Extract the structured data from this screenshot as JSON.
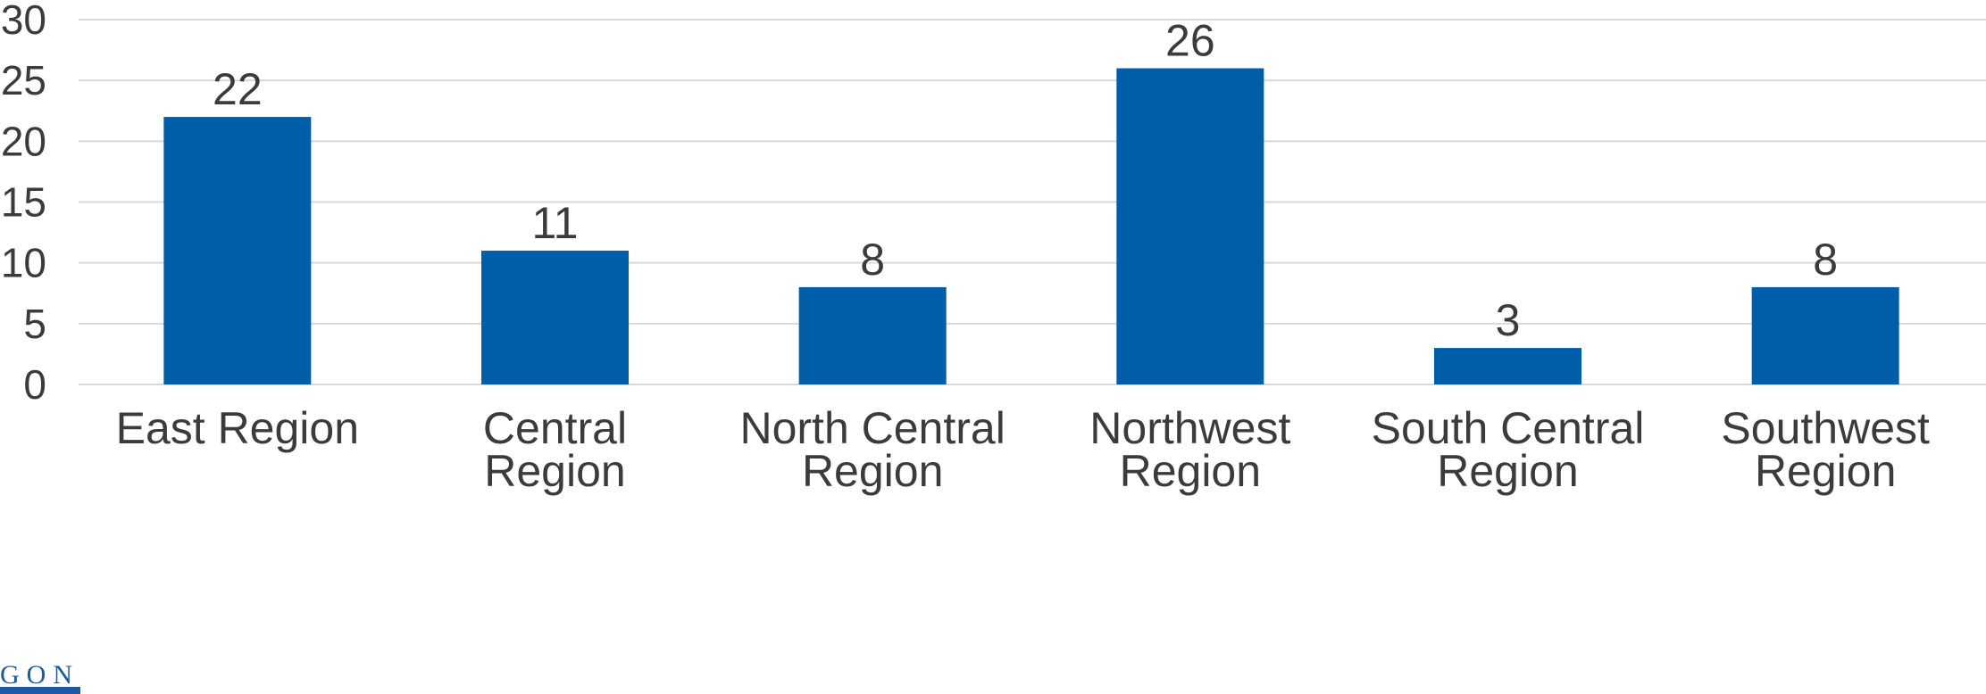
{
  "chart_data": {
    "type": "bar",
    "categories": [
      [
        "East Region"
      ],
      [
        "Central",
        "Region"
      ],
      [
        "North Central",
        "Region"
      ],
      [
        "Northwest",
        "Region"
      ],
      [
        "South Central",
        "Region"
      ],
      [
        "Southwest",
        "Region"
      ]
    ],
    "values": [
      22,
      11,
      8,
      26,
      3,
      8
    ],
    "data_labels": [
      "22",
      "11",
      "8",
      "26",
      "3",
      "8"
    ],
    "ylim": [
      0,
      30
    ],
    "yticks": [
      "0",
      "5",
      "10",
      "15",
      "20",
      "25",
      "30"
    ],
    "grid": true,
    "bar_color": "#005ea8",
    "title": "",
    "xlabel": "",
    "ylabel": ""
  },
  "logo": {
    "text": "GON",
    "color": "#1e5aa0"
  }
}
